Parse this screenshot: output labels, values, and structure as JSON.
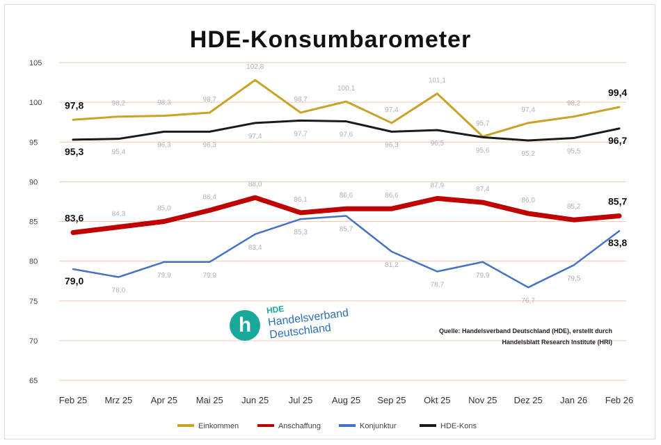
{
  "title": "HDE-Konsumbarometer",
  "source_lines": [
    "Quelle: Handelsverband Deutschland (HDE), erstellt durch",
    "Handelsblatt Research Institute (HRI)"
  ],
  "logo": {
    "abbrev": "HDE",
    "line1": "Handelsverband",
    "line2": "Deutschland",
    "colors": {
      "primary": "#19a99a",
      "secondary": "#2f6fb0"
    }
  },
  "chart_data": {
    "type": "line",
    "title": "HDE-Konsumbarometer",
    "categories": [
      "Feb 25",
      "Mrz 25",
      "Apr 25",
      "Mai 25",
      "Jun 25",
      "Jul 25",
      "Aug 25",
      "Sep 25",
      "Okt 25",
      "Nov 25",
      "Dez 25",
      "Jan 26",
      "Feb 26"
    ],
    "ylim": [
      65,
      105
    ],
    "yticks": [
      65,
      70,
      75,
      80,
      85,
      90,
      95,
      100,
      105
    ],
    "grid": true,
    "legend_position": "bottom",
    "series": [
      {
        "name": "Einkommen",
        "color": "#c9a227",
        "width": 3,
        "values": [
          97.8,
          98.2,
          98.3,
          98.7,
          102.8,
          98.7,
          100.1,
          97.4,
          101.1,
          95.7,
          97.4,
          98.2,
          99.4
        ],
        "labels": [
          "97,8",
          "98,2",
          "98,3",
          "98,7",
          "102,8",
          "98,7",
          "100,1",
          "97,4",
          "101,1",
          "95,7",
          "97,4",
          "98,2",
          "99,4"
        ],
        "bold_labels": [
          0,
          12
        ],
        "label_pos": "above"
      },
      {
        "name": "HDE-Kons",
        "color": "#1a1a1a",
        "width": 3,
        "values": [
          95.3,
          95.4,
          96.3,
          96.3,
          97.4,
          97.7,
          97.6,
          96.3,
          96.5,
          95.6,
          95.2,
          95.5,
          96.7
        ],
        "labels": [
          "95,3",
          "95,4",
          "96,3",
          "96,3",
          "97,4",
          "97,7",
          "97,6",
          "96,3",
          "96,5",
          "95,6",
          "95,2",
          "95,5",
          "96,7"
        ],
        "bold_labels": [
          0,
          12
        ],
        "label_pos": "below"
      },
      {
        "name": "Anschaffung",
        "color": "#c00000",
        "width": 7,
        "values": [
          83.6,
          84.3,
          85.0,
          86.4,
          88.0,
          86.1,
          86.6,
          86.6,
          87.9,
          87.4,
          86.0,
          85.2,
          85.7
        ],
        "labels": [
          "83,6",
          "84,3",
          "85,0",
          "86,4",
          "88,0",
          "86,1",
          "86,6",
          "86,6",
          "87,9",
          "87,4",
          "86,0",
          "85,2",
          "85,7"
        ],
        "bold_labels": [
          0,
          12
        ],
        "label_pos": "above"
      },
      {
        "name": "Konjunktur",
        "color": "#4472c4",
        "width": 2.5,
        "values": [
          79.0,
          78.0,
          79.9,
          79.9,
          83.4,
          85.3,
          85.7,
          81.2,
          78.7,
          79.9,
          76.7,
          79.5,
          83.8
        ],
        "labels": [
          "79,0",
          "78,0",
          "79,9",
          "79,9",
          "83,4",
          "85,3",
          "85,7",
          "81,2",
          "78,7",
          "79,9",
          "76,7",
          "79,5",
          "83,8"
        ],
        "bold_labels": [
          0,
          12
        ],
        "label_pos": "below"
      }
    ],
    "legend": [
      "Einkommen",
      "Anschaffung",
      "Konjunktur",
      "HDE-Kons"
    ]
  }
}
